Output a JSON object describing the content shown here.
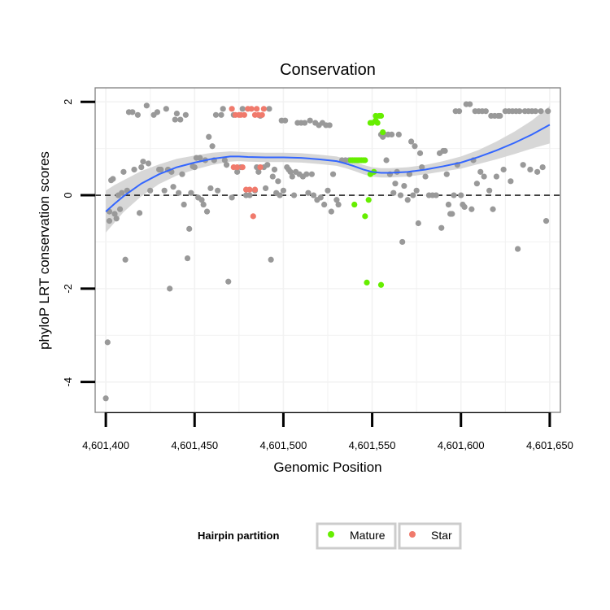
{
  "chart_data": {
    "type": "scatter",
    "title": "Conservation",
    "xlabel": "Genomic Position",
    "ylabel": "phyloP LRT conservation scores",
    "xlim": [
      4601394,
      4601656
    ],
    "ylim": [
      -4.65,
      2.3
    ],
    "x_ticks": [
      4601400,
      4601450,
      4601500,
      4601550,
      4601600,
      4601650
    ],
    "x_tick_labels": [
      "4,601,400",
      "4,601,450",
      "4,601,500",
      "4,601,550",
      "4,601,600",
      "4,601,650"
    ],
    "y_ticks": [
      -4,
      -2,
      0,
      2
    ],
    "y_tick_labels": [
      "-4",
      "-2",
      "0",
      "2"
    ],
    "reference_line": 0,
    "grid": true,
    "legend": {
      "title": "Hairpin partition",
      "position": "bottom",
      "entries": [
        {
          "label": "Mature",
          "color": "#66ee00"
        },
        {
          "label": "Star",
          "color": "#f07a6c"
        }
      ]
    },
    "colors": {
      "other": "#999999",
      "mature": "#66ee00",
      "star": "#f07a6c",
      "smooth_line": "#3366ff",
      "ribbon": "#d3d3d3"
    },
    "series": [
      {
        "name": "Other",
        "points": [
          [
            4601400,
            -4.35
          ],
          [
            4601401,
            -3.15
          ],
          [
            4601402,
            -0.55
          ],
          [
            4601402,
            -0.35
          ],
          [
            4601403,
            0.32
          ],
          [
            4601404,
            0.35
          ],
          [
            4601405,
            -0.4
          ],
          [
            4601406,
            -0.5
          ],
          [
            4601407,
            0.0
          ],
          [
            4601408,
            -0.3
          ],
          [
            4601409,
            0.05
          ],
          [
            4601410,
            0.5
          ],
          [
            4601411,
            -1.38
          ],
          [
            4601412,
            0.1
          ],
          [
            4601413,
            1.78
          ],
          [
            4601415,
            1.78
          ],
          [
            4601416,
            0.55
          ],
          [
            4601418,
            1.72
          ],
          [
            4601419,
            -0.38
          ],
          [
            4601420,
            0.6
          ],
          [
            4601421,
            0.72
          ],
          [
            4601423,
            1.92
          ],
          [
            4601424,
            0.68
          ],
          [
            4601425,
            0.1
          ],
          [
            4601427,
            1.72
          ],
          [
            4601429,
            1.78
          ],
          [
            4601430,
            0.55
          ],
          [
            4601431,
            0.55
          ],
          [
            4601433,
            0.1
          ],
          [
            4601434,
            1.85
          ],
          [
            4601435,
            0.55
          ],
          [
            4601436,
            -2.0
          ],
          [
            4601437,
            0.5
          ],
          [
            4601438,
            0.18
          ],
          [
            4601439,
            1.62
          ],
          [
            4601440,
            1.75
          ],
          [
            4601441,
            0.05
          ],
          [
            4601442,
            1.62
          ],
          [
            4601443,
            0.45
          ],
          [
            4601444,
            -0.2
          ],
          [
            4601445,
            1.72
          ],
          [
            4601446,
            -1.35
          ],
          [
            4601447,
            -0.72
          ],
          [
            4601448,
            0.05
          ],
          [
            4601449,
            0.62
          ],
          [
            4601450,
            0.6
          ],
          [
            4601451,
            0.8
          ],
          [
            4601452,
            -0.05
          ],
          [
            4601453,
            0.8
          ],
          [
            4601454,
            -0.1
          ],
          [
            4601455,
            -0.2
          ],
          [
            4601456,
            0.75
          ],
          [
            4601457,
            -0.35
          ],
          [
            4601458,
            1.25
          ],
          [
            4601459,
            0.15
          ],
          [
            4601460,
            1.05
          ],
          [
            4601461,
            0.75
          ],
          [
            4601462,
            1.72
          ],
          [
            4601463,
            0.1
          ],
          [
            4601465,
            1.72
          ],
          [
            4601466,
            1.85
          ],
          [
            4601467,
            0.75
          ],
          [
            4601468,
            0.65
          ],
          [
            4601469,
            -1.85
          ],
          [
            4601471,
            -0.05
          ],
          [
            4601472,
            1.72
          ],
          [
            4601474,
            0.5
          ],
          [
            4601476,
            0.6
          ],
          [
            4601477,
            1.85
          ],
          [
            4601479,
            0.0
          ],
          [
            4601481,
            0.0
          ],
          [
            4601484,
            0.1
          ],
          [
            4601485,
            0.6
          ],
          [
            4601486,
            0.5
          ],
          [
            4601487,
            1.7
          ],
          [
            4601489,
            0.6
          ],
          [
            4601490,
            0.15
          ],
          [
            4601491,
            0.65
          ],
          [
            4601492,
            1.85
          ],
          [
            4601493,
            -1.38
          ],
          [
            4601494,
            0.4
          ],
          [
            4601495,
            0.55
          ],
          [
            4601496,
            0.05
          ],
          [
            4601497,
            0.3
          ],
          [
            4601498,
            0.0
          ],
          [
            4601499,
            1.6
          ],
          [
            4601500,
            0.1
          ],
          [
            4601501,
            1.6
          ],
          [
            4601502,
            0.6
          ],
          [
            4601503,
            0.55
          ],
          [
            4601504,
            0.5
          ],
          [
            4601505,
            0.4
          ],
          [
            4601506,
            0.0
          ],
          [
            4601507,
            0.5
          ],
          [
            4601508,
            1.55
          ],
          [
            4601509,
            0.45
          ],
          [
            4601510,
            1.55
          ],
          [
            4601511,
            0.4
          ],
          [
            4601512,
            1.55
          ],
          [
            4601513,
            0.45
          ],
          [
            4601514,
            0.05
          ],
          [
            4601515,
            1.6
          ],
          [
            4601516,
            0.45
          ],
          [
            4601517,
            0.0
          ],
          [
            4601518,
            1.55
          ],
          [
            4601519,
            -0.1
          ],
          [
            4601520,
            1.5
          ],
          [
            4601521,
            -0.05
          ],
          [
            4601522,
            1.55
          ],
          [
            4601523,
            -0.2
          ],
          [
            4601524,
            1.5
          ],
          [
            4601525,
            0.1
          ],
          [
            4601526,
            1.5
          ],
          [
            4601527,
            -0.35
          ],
          [
            4601528,
            0.45
          ],
          [
            4601530,
            -0.1
          ],
          [
            4601531,
            -0.2
          ],
          [
            4601533,
            0.75
          ],
          [
            4601535,
            0.75
          ],
          [
            4601537,
            0.75
          ],
          [
            4601555,
            1.3
          ],
          [
            4601556,
            1.25
          ],
          [
            4601557,
            1.3
          ],
          [
            4601558,
            0.75
          ],
          [
            4601559,
            1.3
          ],
          [
            4601560,
            0.45
          ],
          [
            4601561,
            1.3
          ],
          [
            4601562,
            0.05
          ],
          [
            4601563,
            0.25
          ],
          [
            4601564,
            0.5
          ],
          [
            4601565,
            1.3
          ],
          [
            4601566,
            0.0
          ],
          [
            4601567,
            -1.0
          ],
          [
            4601568,
            0.2
          ],
          [
            4601570,
            -0.1
          ],
          [
            4601571,
            0.45
          ],
          [
            4601572,
            1.15
          ],
          [
            4601573,
            0.0
          ],
          [
            4601574,
            1.05
          ],
          [
            4601575,
            0.1
          ],
          [
            4601576,
            -0.6
          ],
          [
            4601577,
            0.9
          ],
          [
            4601578,
            0.6
          ],
          [
            4601580,
            0.4
          ],
          [
            4601582,
            0.0
          ],
          [
            4601584,
            0.0
          ],
          [
            4601586,
            0.0
          ],
          [
            4601588,
            0.9
          ],
          [
            4601589,
            -0.7
          ],
          [
            4601590,
            0.95
          ],
          [
            4601591,
            0.95
          ],
          [
            4601592,
            0.45
          ],
          [
            4601593,
            -0.2
          ],
          [
            4601594,
            -0.4
          ],
          [
            4601595,
            -0.4
          ],
          [
            4601596,
            0.0
          ],
          [
            4601597,
            1.8
          ],
          [
            4601598,
            0.65
          ],
          [
            4601599,
            1.8
          ],
          [
            4601600,
            0.0
          ],
          [
            4601601,
            -0.2
          ],
          [
            4601602,
            -0.25
          ],
          [
            4601603,
            1.95
          ],
          [
            4601605,
            1.95
          ],
          [
            4601606,
            -0.3
          ],
          [
            4601607,
            0.75
          ],
          [
            4601608,
            1.8
          ],
          [
            4601609,
            0.25
          ],
          [
            4601610,
            1.8
          ],
          [
            4601611,
            0.5
          ],
          [
            4601612,
            1.8
          ],
          [
            4601613,
            0.4
          ],
          [
            4601614,
            1.8
          ],
          [
            4601616,
            0.1
          ],
          [
            4601617,
            1.7
          ],
          [
            4601618,
            -0.3
          ],
          [
            4601619,
            1.7
          ],
          [
            4601620,
            0.4
          ],
          [
            4601621,
            1.7
          ],
          [
            4601622,
            1.7
          ],
          [
            4601624,
            0.55
          ],
          [
            4601625,
            1.8
          ],
          [
            4601627,
            1.8
          ],
          [
            4601628,
            0.3
          ],
          [
            4601629,
            1.8
          ],
          [
            4601631,
            1.8
          ],
          [
            4601632,
            -1.15
          ],
          [
            4601633,
            1.8
          ],
          [
            4601635,
            0.65
          ],
          [
            4601636,
            1.8
          ],
          [
            4601638,
            1.8
          ],
          [
            4601639,
            0.55
          ],
          [
            4601640,
            1.8
          ],
          [
            4601642,
            1.8
          ],
          [
            4601643,
            0.5
          ],
          [
            4601645,
            1.8
          ],
          [
            4601646,
            0.6
          ],
          [
            4601648,
            -0.55
          ],
          [
            4601649,
            1.8
          ]
        ]
      },
      {
        "name": "Mature",
        "points": [
          [
            4601538,
            0.75
          ],
          [
            4601539,
            0.75
          ],
          [
            4601540,
            0.75
          ],
          [
            4601540,
            -0.2
          ],
          [
            4601541,
            0.75
          ],
          [
            4601542,
            0.75
          ],
          [
            4601543,
            0.75
          ],
          [
            4601544,
            0.75
          ],
          [
            4601545,
            0.75
          ],
          [
            4601546,
            0.75
          ],
          [
            4601546,
            -0.45
          ],
          [
            4601547,
            -1.87
          ],
          [
            4601548,
            -0.1
          ],
          [
            4601549,
            1.55
          ],
          [
            4601549,
            0.45
          ],
          [
            4601550,
            1.55
          ],
          [
            4601551,
            0.5
          ],
          [
            4601552,
            1.6
          ],
          [
            4601552,
            1.7
          ],
          [
            4601553,
            1.55
          ],
          [
            4601554,
            1.7
          ],
          [
            4601555,
            -1.92
          ],
          [
            4601555,
            1.7
          ],
          [
            4601556,
            1.35
          ]
        ]
      },
      {
        "name": "Star",
        "points": [
          [
            4601471,
            1.85
          ],
          [
            4601472,
            0.6
          ],
          [
            4601473,
            1.72
          ],
          [
            4601474,
            0.6
          ],
          [
            4601475,
            1.72
          ],
          [
            4601476,
            1.72
          ],
          [
            4601477,
            0.6
          ],
          [
            4601478,
            1.72
          ],
          [
            4601479,
            0.12
          ],
          [
            4601480,
            1.85
          ],
          [
            4601481,
            0.12
          ],
          [
            4601482,
            1.85
          ],
          [
            4601483,
            -0.45
          ],
          [
            4601484,
            1.72
          ],
          [
            4601484,
            0.12
          ],
          [
            4601485,
            1.85
          ],
          [
            4601486,
            1.72
          ],
          [
            4601487,
            0.6
          ],
          [
            4601488,
            1.72
          ],
          [
            4601489,
            1.85
          ]
        ]
      }
    ],
    "smooth": {
      "x": [
        4601400,
        4601405,
        4601410,
        4601420,
        4601430,
        4601440,
        4601450,
        4601460,
        4601470,
        4601475,
        4601480,
        4601490,
        4601500,
        4601510,
        4601520,
        4601530,
        4601535,
        4601540,
        4601545,
        4601550,
        4601555,
        4601560,
        4601570,
        4601580,
        4601590,
        4601600,
        4601610,
        4601620,
        4601630,
        4601640,
        4601650
      ],
      "y": [
        -0.35,
        -0.18,
        -0.02,
        0.25,
        0.45,
        0.6,
        0.7,
        0.78,
        0.83,
        0.83,
        0.82,
        0.81,
        0.81,
        0.8,
        0.77,
        0.73,
        0.68,
        0.62,
        0.55,
        0.5,
        0.48,
        0.48,
        0.5,
        0.55,
        0.62,
        0.7,
        0.82,
        0.96,
        1.12,
        1.3,
        1.51
      ],
      "ci_half_width": [
        0.45,
        0.4,
        0.34,
        0.27,
        0.21,
        0.18,
        0.15,
        0.13,
        0.11,
        0.1,
        0.1,
        0.1,
        0.1,
        0.1,
        0.1,
        0.1,
        0.1,
        0.1,
        0.1,
        0.1,
        0.1,
        0.1,
        0.1,
        0.1,
        0.11,
        0.13,
        0.15,
        0.19,
        0.24,
        0.3,
        0.4
      ]
    }
  }
}
